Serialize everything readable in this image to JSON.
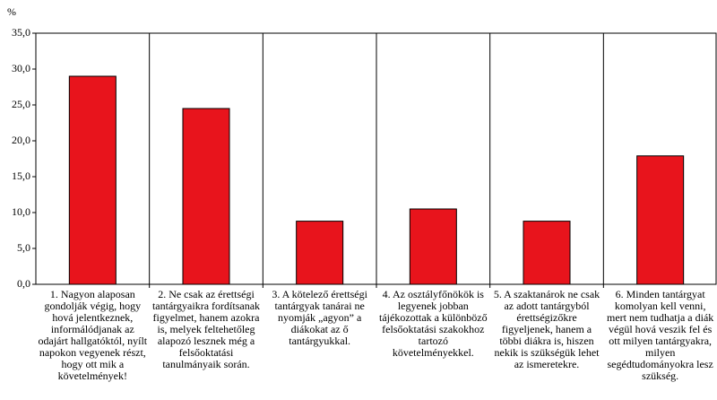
{
  "chart_data": {
    "type": "bar",
    "ylabel": "%",
    "categories": [
      "1. Nagyon alaposan gondolják végig, hogy hová jelentkeznek, informálódjanak az odajárt hallgatóktól, nyílt napokon vegyenek részt, hogy ott mik a követelmények!",
      "2. Ne csak az érettségi tantárgyaikra fordítsanak figyelmet, hanem azokra is, melyek feltehetőleg alapozó lesznek még a felsőoktatási tanulmányaik során.",
      "3. A kötelező érettségi tantárgyak tanárai ne nyomják „agyon” a diákokat az ő tantárgyukkal.",
      "4. Az osztályfőnökök is legyenek jobban tájékozottak a különböző felsőoktatási szakokhoz tartozó követelményekkel.",
      "5. A szaktanárok ne csak az adott tantárgyból érettségizőkre figyeljenek, hanem a többi diákra is, hiszen nekik is szükségük lehet az ismeretekre.",
      "6. Minden tantárgyat komolyan kell venni, mert nem tudhatja a diák végül hová veszik fel és ott milyen tantárgyakra, milyen segédtudományokra lesz szükség."
    ],
    "values": [
      29.0,
      24.5,
      8.8,
      10.5,
      8.8,
      17.9
    ],
    "color": "#e8141c",
    "ylim": [
      0,
      35
    ],
    "yticks": [
      {
        "value": 0,
        "label": "0,0"
      },
      {
        "value": 5,
        "label": "5,0"
      },
      {
        "value": 10,
        "label": "10,0"
      },
      {
        "value": 15,
        "label": "15,0"
      },
      {
        "value": 20,
        "label": "20,0"
      },
      {
        "value": 25,
        "label": "25,0"
      },
      {
        "value": 30,
        "label": "30,0"
      },
      {
        "value": 35,
        "label": "35,0"
      }
    ]
  }
}
